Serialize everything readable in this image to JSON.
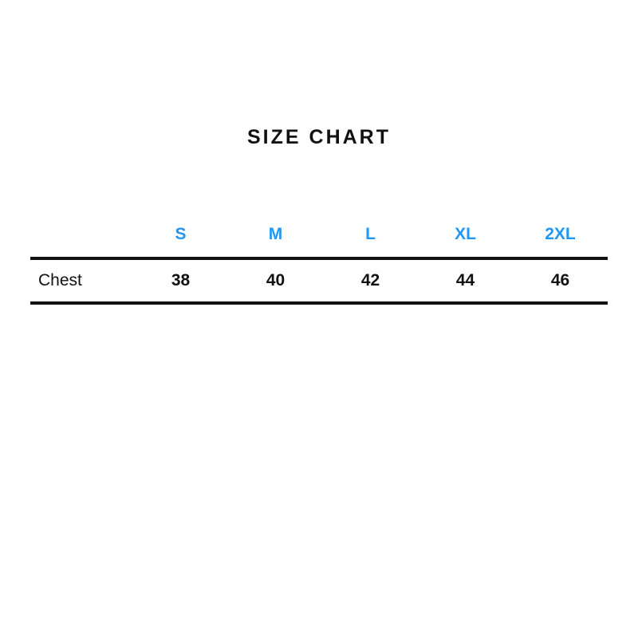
{
  "title": "SIZE CHART",
  "colors": {
    "accent_blue": "#2196f3",
    "text_black": "#111111",
    "rule_black": "#111111",
    "background": "#ffffff"
  },
  "chart_data": {
    "type": "table",
    "title": "SIZE CHART",
    "columns": [
      "",
      "S",
      "M",
      "L",
      "XL",
      "2XL"
    ],
    "rows": [
      {
        "label": "Chest",
        "values": [
          "38",
          "40",
          "42",
          "44",
          "46"
        ]
      }
    ],
    "layout": {
      "header_text_color": "#2196f3",
      "grid": "horizontal-rules-only",
      "rule_thickness_px": 4,
      "label_column_align": "left",
      "value_columns_align": "center"
    }
  }
}
